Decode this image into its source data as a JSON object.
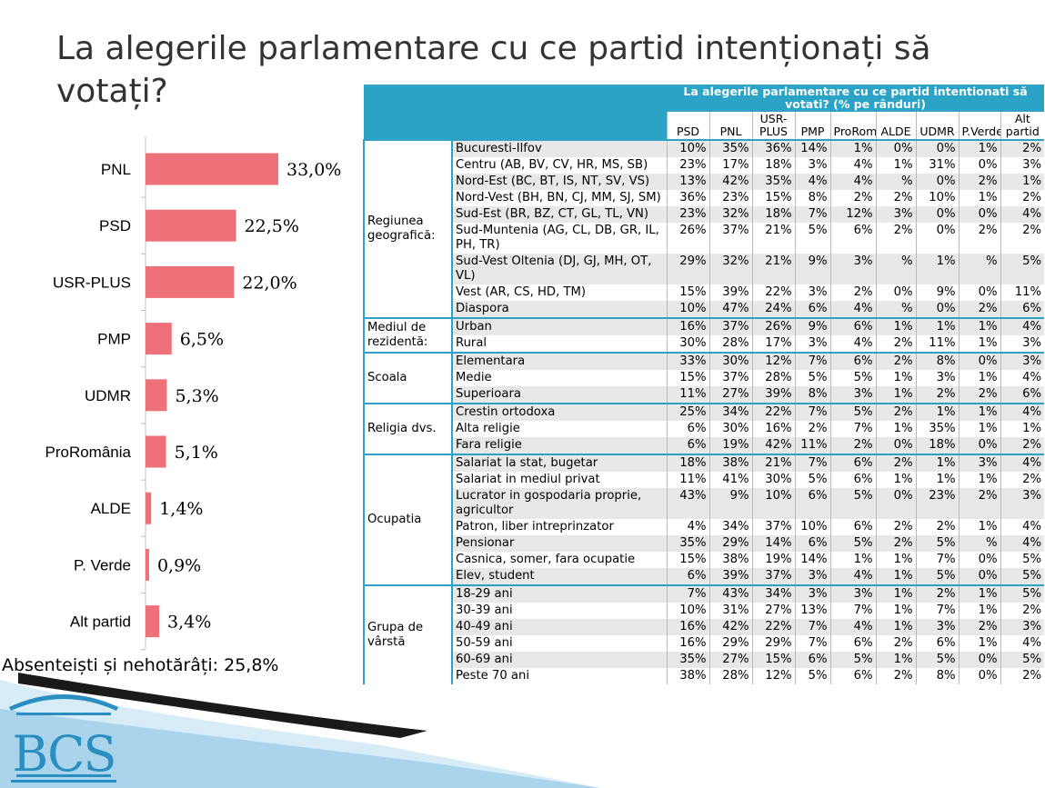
{
  "slide": {
    "title": "La alegerile parlamentare cu ce partid intenționați să votați?",
    "absentee_note": "Absenteiști și nehotărâți: 25,8%"
  },
  "colors": {
    "bar": "#ee7179",
    "header": "#2aa3c7",
    "title_text": "#333333",
    "logo": "#2a8fc0"
  },
  "logo": {
    "text": "BCS"
  },
  "chart_data": {
    "type": "bar",
    "orientation": "horizontal",
    "categories": [
      "PNL",
      "PSD",
      "USR-PLUS",
      "PMP",
      "UDMR",
      "ProRomânia",
      "ALDE",
      "P. Verde",
      "Alt partid"
    ],
    "values": [
      33.0,
      22.5,
      22.0,
      6.5,
      5.3,
      5.1,
      1.4,
      0.9,
      3.4
    ],
    "value_labels": [
      "33,0%",
      "22,5%",
      "22,0%",
      "6,5%",
      "5,3%",
      "5,1%",
      "1,4%",
      "0,9%",
      "3,4%"
    ],
    "xlim": [
      0,
      33
    ],
    "grid": false
  },
  "table": {
    "header_title": "La alegerile parlamentare cu ce partid intentionati să votati? (% pe rânduri)",
    "columns": [
      "PSD",
      "PNL",
      "USR-PLUS",
      "PMP",
      "ProRomania",
      "ALDE",
      "UDMR",
      "P.Verde",
      "Alt partid"
    ],
    "groups": [
      {
        "name": "Regiunea geografică:",
        "rows": [
          {
            "label": "Bucuresti-Ilfov",
            "values": [
              "10%",
              "35%",
              "36%",
              "14%",
              "1%",
              "0%",
              "0%",
              "1%",
              "2%"
            ]
          },
          {
            "label": "Centru (AB, BV, CV, HR, MS, SB)",
            "values": [
              "23%",
              "17%",
              "18%",
              "3%",
              "4%",
              "1%",
              "31%",
              "0%",
              "3%"
            ]
          },
          {
            "label": "Nord-Est (BC, BT, IS, NT, SV, VS)",
            "values": [
              "13%",
              "42%",
              "35%",
              "4%",
              "4%",
              "%",
              "0%",
              "2%",
              "1%"
            ]
          },
          {
            "label": "Nord-Vest (BH, BN, CJ, MM, SJ, SM)",
            "values": [
              "36%",
              "23%",
              "15%",
              "8%",
              "2%",
              "2%",
              "10%",
              "1%",
              "2%"
            ]
          },
          {
            "label": "Sud-Est (BR, BZ, CT, GL, TL, VN)",
            "values": [
              "23%",
              "32%",
              "18%",
              "7%",
              "12%",
              "3%",
              "0%",
              "0%",
              "4%"
            ]
          },
          {
            "label": "Sud-Muntenia (AG, CL, DB, GR, IL, PH, TR)",
            "values": [
              "26%",
              "37%",
              "21%",
              "5%",
              "6%",
              "2%",
              "0%",
              "2%",
              "2%"
            ]
          },
          {
            "label": "Sud-Vest Oltenia (DJ, GJ, MH, OT, VL)",
            "values": [
              "29%",
              "32%",
              "21%",
              "9%",
              "3%",
              "%",
              "1%",
              "%",
              "5%"
            ]
          },
          {
            "label": "Vest (AR, CS, HD, TM)",
            "values": [
              "15%",
              "39%",
              "22%",
              "3%",
              "2%",
              "0%",
              "9%",
              "0%",
              "11%"
            ]
          },
          {
            "label": "Diaspora",
            "values": [
              "10%",
              "47%",
              "24%",
              "6%",
              "4%",
              "%",
              "0%",
              "2%",
              "6%"
            ]
          }
        ]
      },
      {
        "name": "Mediul de rezidentă:",
        "rows": [
          {
            "label": "Urban",
            "values": [
              "16%",
              "37%",
              "26%",
              "9%",
              "6%",
              "1%",
              "1%",
              "1%",
              "4%"
            ]
          },
          {
            "label": "Rural",
            "values": [
              "30%",
              "28%",
              "17%",
              "3%",
              "4%",
              "2%",
              "11%",
              "1%",
              "3%"
            ]
          }
        ]
      },
      {
        "name": "Scoala",
        "rows": [
          {
            "label": "Elementara",
            "values": [
              "33%",
              "30%",
              "12%",
              "7%",
              "6%",
              "2%",
              "8%",
              "0%",
              "3%"
            ]
          },
          {
            "label": "Medie",
            "values": [
              "15%",
              "37%",
              "28%",
              "5%",
              "5%",
              "1%",
              "3%",
              "1%",
              "4%"
            ]
          },
          {
            "label": "Superioara",
            "values": [
              "11%",
              "27%",
              "39%",
              "8%",
              "3%",
              "1%",
              "2%",
              "2%",
              "6%"
            ]
          }
        ]
      },
      {
        "name": "Religia dvs.",
        "rows": [
          {
            "label": "Crestin ortodoxa",
            "values": [
              "25%",
              "34%",
              "22%",
              "7%",
              "5%",
              "2%",
              "1%",
              "1%",
              "4%"
            ]
          },
          {
            "label": "Alta religie",
            "values": [
              "6%",
              "30%",
              "16%",
              "2%",
              "7%",
              "1%",
              "35%",
              "1%",
              "1%"
            ]
          },
          {
            "label": "Fara religie",
            "values": [
              "6%",
              "19%",
              "42%",
              "11%",
              "2%",
              "0%",
              "18%",
              "0%",
              "2%"
            ]
          }
        ]
      },
      {
        "name": "Ocupatia",
        "rows": [
          {
            "label": "Salariat la stat, bugetar",
            "values": [
              "18%",
              "38%",
              "21%",
              "7%",
              "6%",
              "2%",
              "1%",
              "3%",
              "4%"
            ]
          },
          {
            "label": "Salariat in mediul privat",
            "values": [
              "11%",
              "41%",
              "30%",
              "5%",
              "6%",
              "1%",
              "1%",
              "1%",
              "2%"
            ]
          },
          {
            "label": "Lucrator in gospodaria proprie, agricultor",
            "values": [
              "43%",
              "9%",
              "10%",
              "6%",
              "5%",
              "0%",
              "23%",
              "2%",
              "3%"
            ]
          },
          {
            "label": "Patron, liber intreprinzator",
            "values": [
              "4%",
              "34%",
              "37%",
              "10%",
              "6%",
              "2%",
              "2%",
              "1%",
              "4%"
            ]
          },
          {
            "label": "Pensionar",
            "values": [
              "35%",
              "29%",
              "14%",
              "6%",
              "5%",
              "2%",
              "5%",
              "%",
              "4%"
            ]
          },
          {
            "label": "Casnica, somer, fara ocupatie",
            "values": [
              "15%",
              "38%",
              "19%",
              "14%",
              "1%",
              "1%",
              "7%",
              "0%",
              "5%"
            ]
          },
          {
            "label": "Elev, student",
            "values": [
              "6%",
              "39%",
              "37%",
              "3%",
              "4%",
              "1%",
              "5%",
              "0%",
              "5%"
            ]
          }
        ]
      },
      {
        "name": "Grupa de vârstă",
        "rows": [
          {
            "label": "18-29 ani",
            "values": [
              "7%",
              "43%",
              "34%",
              "3%",
              "3%",
              "1%",
              "2%",
              "1%",
              "5%"
            ]
          },
          {
            "label": "30-39 ani",
            "values": [
              "10%",
              "31%",
              "27%",
              "13%",
              "7%",
              "1%",
              "7%",
              "1%",
              "2%"
            ]
          },
          {
            "label": "40-49 ani",
            "values": [
              "16%",
              "42%",
              "22%",
              "7%",
              "4%",
              "1%",
              "3%",
              "2%",
              "3%"
            ]
          },
          {
            "label": "50-59 ani",
            "values": [
              "16%",
              "29%",
              "29%",
              "7%",
              "6%",
              "2%",
              "6%",
              "1%",
              "4%"
            ]
          },
          {
            "label": "60-69 ani",
            "values": [
              "35%",
              "27%",
              "15%",
              "6%",
              "5%",
              "1%",
              "5%",
              "0%",
              "5%"
            ]
          },
          {
            "label": "Peste 70 ani",
            "values": [
              "38%",
              "28%",
              "12%",
              "5%",
              "6%",
              "2%",
              "8%",
              "0%",
              "2%"
            ]
          }
        ]
      }
    ]
  }
}
